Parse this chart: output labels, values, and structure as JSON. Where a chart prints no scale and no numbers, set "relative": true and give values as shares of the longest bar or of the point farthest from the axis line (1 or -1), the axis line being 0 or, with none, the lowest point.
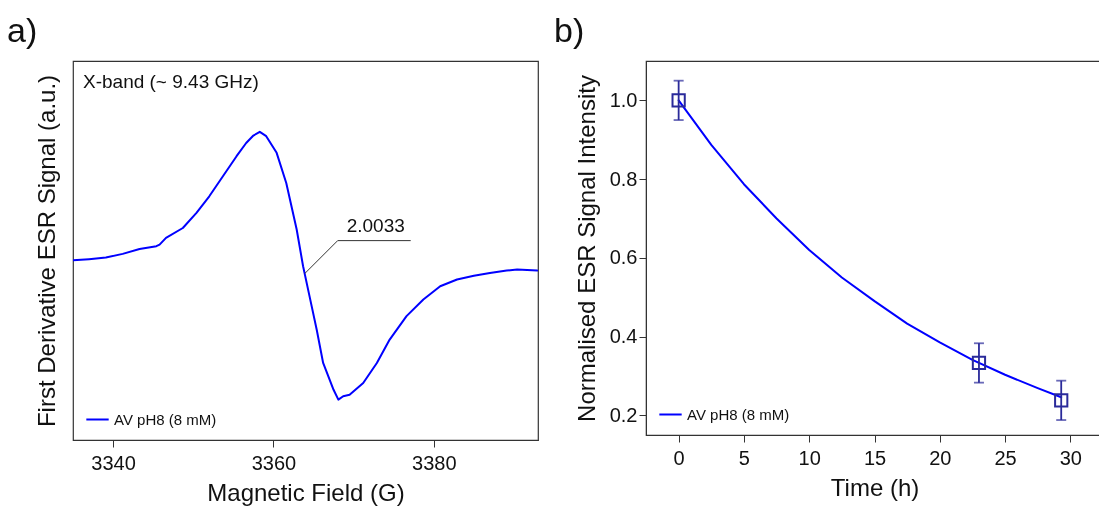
{
  "chart_data": [
    {
      "type": "line",
      "title": "a)",
      "xlabel": "Magnetic Field (G)",
      "ylabel": "First Derivative ESR Signal (a.u.)",
      "relative": true,
      "tick_labels": "x",
      "grid": false,
      "legend": "bottom left",
      "xlim": [
        3335,
        3393
      ],
      "xticks": [
        3340,
        3360,
        3380
      ],
      "x": [
        3335.0,
        3337.0,
        3339.1,
        3341.2,
        3343.3,
        3345.4,
        3345.8,
        3346.6,
        3348.7,
        3350.4,
        3352.0,
        3353.7,
        3355.4,
        3356.6,
        3357.5,
        3358.3,
        3359.1,
        3360.4,
        3361.6,
        3362.9,
        3363.7,
        3364.5,
        3365.4,
        3366.2,
        3367.5,
        3368.1,
        3368.7,
        3369.5,
        3371.2,
        3372.9,
        3374.5,
        3376.6,
        3378.7,
        3380.8,
        3382.9,
        3385.0,
        3387.0,
        3389.1,
        3390.4,
        3392.9
      ],
      "series": [
        {
          "name": "AV pH8 (8 mM)",
          "color": "#0000ff",
          "values": [
            0.583,
            0.587,
            0.592,
            0.604,
            0.62,
            0.629,
            0.634,
            0.656,
            0.688,
            0.737,
            0.791,
            0.856,
            0.921,
            0.964,
            0.988,
            1.0,
            0.986,
            0.932,
            0.834,
            0.683,
            0.564,
            0.467,
            0.358,
            0.25,
            0.163,
            0.131,
            0.142,
            0.147,
            0.185,
            0.25,
            0.326,
            0.402,
            0.456,
            0.499,
            0.521,
            0.533,
            0.542,
            0.55,
            0.553,
            0.55
          ]
        }
      ],
      "annotations": [
        "X-band (~ 9.43 GHz)",
        {
          "text": "2.0033",
          "x": 3363.9,
          "y": 0.54
        }
      ]
    },
    {
      "type": "line",
      "title": "b)",
      "xlabel": "Time (h)",
      "ylabel": "Normalised ESR Signal Intensity",
      "grid": false,
      "legend": "bottom left",
      "xlim": [
        -2.5,
        32.5
      ],
      "xticks": [
        0,
        5,
        10,
        15,
        20,
        25,
        30
      ],
      "ylim": [
        0.15,
        1.1
      ],
      "yticks": [
        0.2,
        0.4,
        0.6,
        0.8,
        {
          "value": 1.0,
          "label": "1.0"
        }
      ],
      "series": [
        {
          "name": "AV pH8 (8 mM)",
          "type": "line",
          "color": "#0000ff",
          "x": [
            0,
            2.5,
            5,
            7.5,
            10,
            12.5,
            15,
            17.5,
            20,
            22.5,
            25,
            27.5,
            29.3
          ],
          "values": [
            1.0,
            0.887,
            0.787,
            0.7,
            0.62,
            0.55,
            0.49,
            0.433,
            0.385,
            0.341,
            0.303,
            0.269,
            0.246
          ]
        },
        {
          "type": "scatter",
          "marker": "square",
          "color": "#2a2a9a",
          "x": [
            0,
            23,
            29.3
          ],
          "values": [
            1.0,
            0.333,
            0.238
          ],
          "errors": [
            0.05,
            0.05,
            0.05
          ]
        }
      ]
    }
  ]
}
